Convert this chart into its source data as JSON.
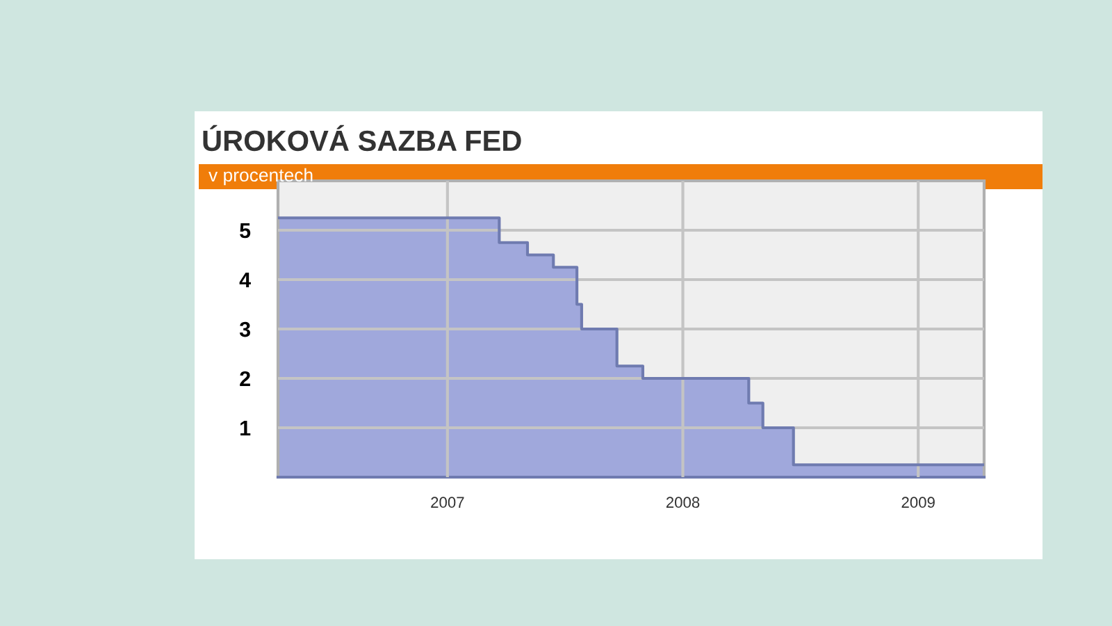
{
  "chart_data": {
    "type": "area",
    "title": "ÚROKOVÁ SAZBA FED",
    "subtitle": "v procentech",
    "x": [
      2006.28,
      2007.22,
      2007.22,
      2007.34,
      2007.34,
      2007.45,
      2007.45,
      2007.55,
      2007.55,
      2007.57,
      2007.57,
      2007.72,
      2007.72,
      2007.83,
      2007.83,
      2008.28,
      2008.28,
      2008.34,
      2008.34,
      2008.47,
      2008.47,
      2009.28
    ],
    "series": [
      {
        "color": "#a0a8dc",
        "values": [
          5.25,
          5.25,
          4.75,
          4.75,
          4.5,
          4.5,
          4.25,
          4.25,
          3.5,
          3.5,
          3.0,
          3.0,
          2.25,
          2.25,
          2.0,
          2.0,
          1.5,
          1.5,
          1.0,
          1.0,
          0.25,
          0.25
        ]
      }
    ],
    "xlim": [
      2006.28,
      2009.28
    ],
    "xticks": [
      2007,
      2008,
      2009
    ],
    "ylim": [
      0,
      6
    ],
    "yticks": [
      1,
      2,
      3,
      4,
      5
    ],
    "grid": true
  }
}
